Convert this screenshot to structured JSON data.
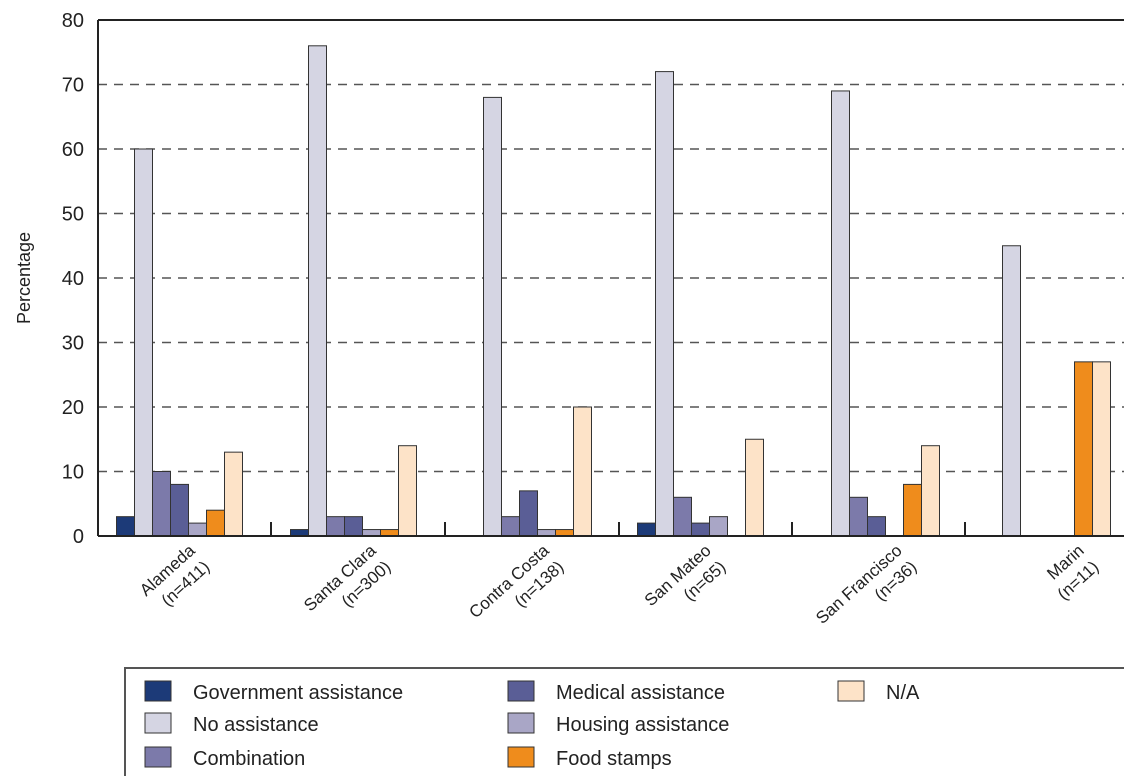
{
  "chart_data": {
    "type": "bar",
    "ylabel": "Percentage",
    "xlabel": "",
    "ylim": [
      0,
      80
    ],
    "yticks": [
      "0",
      "10",
      "20",
      "30",
      "40",
      "50",
      "60",
      "70",
      "80"
    ],
    "grid": "horizontal dashed",
    "legend_position": "bottom",
    "categories": [
      {
        "line1": "Alameda",
        "line2": "(n=411)"
      },
      {
        "line1": "Santa Clara",
        "line2": "(n=300)"
      },
      {
        "line1": "Contra Costa",
        "line2": "(n=138)"
      },
      {
        "line1": "San Mateo",
        "line2": "(n=65)"
      },
      {
        "line1": "San Francisco",
        "line2": "(n=36)"
      },
      {
        "line1": "Marin",
        "line2": "(n=11)"
      }
    ],
    "series": [
      {
        "name": "Government assistance",
        "color": "#1c3a78",
        "values": [
          3,
          1,
          0,
          2,
          0,
          0
        ]
      },
      {
        "name": "No assistance",
        "color": "#d5d5e3",
        "values": [
          60,
          76,
          68,
          72,
          69,
          45
        ]
      },
      {
        "name": "Combination",
        "color": "#7c7aaa",
        "values": [
          10,
          3,
          3,
          6,
          6,
          0
        ]
      },
      {
        "name": "Medical assistance",
        "color": "#5a5e96",
        "values": [
          8,
          3,
          7,
          2,
          3,
          0
        ]
      },
      {
        "name": "Housing assistance",
        "color": "#a9a6c6",
        "values": [
          2,
          1,
          1,
          3,
          0,
          0
        ]
      },
      {
        "name": "Food stamps",
        "color": "#ef8c1c",
        "values": [
          4,
          1,
          1,
          0,
          8,
          27
        ]
      },
      {
        "name": "N/A",
        "color": "#fde3c8",
        "values": [
          13,
          14,
          20,
          15,
          14,
          27
        ]
      }
    ],
    "legend_order": [
      [
        "Government assistance",
        "Medical assistance",
        "N/A"
      ],
      [
        "No assistance",
        "Housing assistance"
      ],
      [
        "Combination",
        "Food stamps"
      ]
    ]
  }
}
